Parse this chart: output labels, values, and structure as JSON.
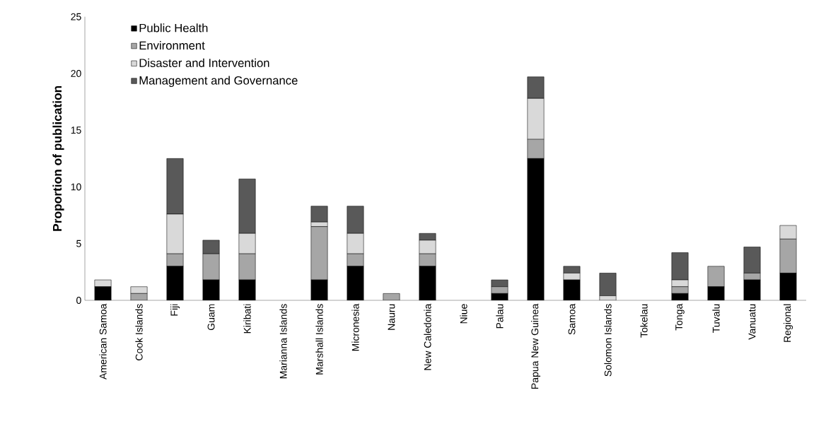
{
  "chart_data": {
    "type": "bar",
    "stacked": true,
    "ylabel": "Proportion of publication",
    "categories": [
      "American Samoa",
      "Cook Islands",
      "Fiji",
      "Guam",
      "Kiribati",
      "Marianna Islands",
      "Marshall Islands",
      "Micronesia",
      "Nauru",
      "New Caledonia",
      "Niue",
      "Palau",
      "Papua New Guinea",
      "Samoa",
      "Solomon Islands",
      "Tokelau",
      "Tonga",
      "Tuvalu",
      "Vanuatu",
      "Regional"
    ],
    "series": [
      {
        "name": "Public Health",
        "color": "#000000",
        "values": [
          1.2,
          0,
          3.0,
          1.8,
          1.8,
          0,
          1.8,
          3.0,
          0,
          3.0,
          0,
          0.6,
          12.5,
          1.8,
          0,
          0,
          0.6,
          1.2,
          1.8,
          2.4
        ]
      },
      {
        "name": "Environment",
        "color": "#a6a6a6",
        "values": [
          0,
          0.6,
          1.1,
          2.3,
          2.3,
          0,
          4.7,
          1.1,
          0.6,
          1.1,
          0,
          0.6,
          1.7,
          0,
          0,
          0,
          0.6,
          1.8,
          0.6,
          3.0
        ]
      },
      {
        "name": "Disaster and Intervention",
        "color": "#d9d9d9",
        "values": [
          0.6,
          0.6,
          3.5,
          0,
          1.8,
          0,
          0.4,
          1.8,
          0,
          1.2,
          0,
          0,
          3.6,
          0.6,
          0.4,
          0,
          0.6,
          0,
          0,
          1.2
        ]
      },
      {
        "name": "Management and Governance",
        "color": "#595959",
        "values": [
          0,
          0,
          4.9,
          1.2,
          4.8,
          0,
          1.4,
          2.4,
          0,
          0.6,
          0,
          0.6,
          1.9,
          0.6,
          2.0,
          0,
          2.4,
          0,
          2.3,
          0
        ]
      }
    ],
    "ylim": [
      0,
      25
    ],
    "yticks": [
      0,
      5,
      10,
      15,
      20,
      25
    ],
    "grid": false,
    "legend": "top left"
  }
}
